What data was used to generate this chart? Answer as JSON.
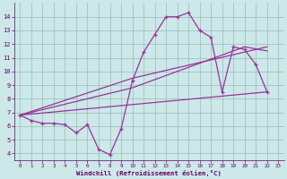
{
  "bg_color": "#cce8e8",
  "grid_color": "#99bbbb",
  "line_color": "#993399",
  "xlim": [
    -0.5,
    23.5
  ],
  "ylim": [
    3.5,
    15.0
  ],
  "xtick_labels": [
    "0",
    "1",
    "2",
    "3",
    "4",
    "5",
    "6",
    "7",
    "8",
    "9",
    "10",
    "11",
    "12",
    "13",
    "14",
    "15",
    "16",
    "17",
    "18",
    "19",
    "20",
    "21",
    "22",
    "23"
  ],
  "xtick_vals": [
    0,
    1,
    2,
    3,
    4,
    5,
    6,
    7,
    8,
    9,
    10,
    11,
    12,
    13,
    14,
    15,
    16,
    17,
    18,
    19,
    20,
    21,
    22,
    23
  ],
  "ytick_vals": [
    4,
    5,
    6,
    7,
    8,
    9,
    10,
    11,
    12,
    13,
    14
  ],
  "xlabel": "Windchill (Refroidissement éolien,°C)",
  "main_x": [
    0,
    1,
    2,
    3,
    4,
    5,
    6,
    7,
    8,
    9,
    10,
    11,
    12,
    13,
    14,
    15,
    16,
    17,
    18,
    19,
    20,
    21,
    22
  ],
  "main_y": [
    6.8,
    6.4,
    6.2,
    6.2,
    6.1,
    5.5,
    6.1,
    4.3,
    3.9,
    5.8,
    9.3,
    11.4,
    12.7,
    14.0,
    14.0,
    14.3,
    13.0,
    12.5,
    8.5,
    11.8,
    11.6,
    10.5,
    8.5
  ],
  "line1_x": [
    0,
    10,
    22
  ],
  "line1_y": [
    6.8,
    9.5,
    11.8
  ],
  "line2_x": [
    0,
    10,
    20,
    22
  ],
  "line2_y": [
    6.8,
    8.8,
    11.8,
    11.5
  ],
  "line3_x": [
    0,
    22
  ],
  "line3_y": [
    6.8,
    8.5
  ]
}
